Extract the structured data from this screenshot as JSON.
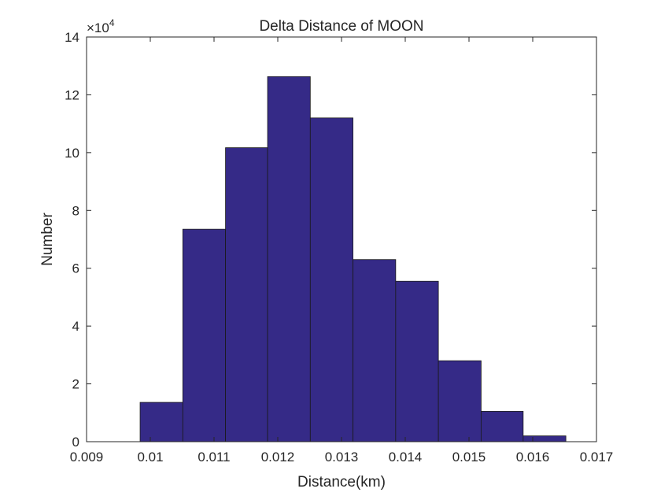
{
  "chart_data": {
    "type": "bar",
    "title": "Delta Distance of MOON",
    "xlabel": "Distance(km)",
    "ylabel": "Number",
    "y_exponent_label": "×10",
    "y_exponent_power": "4",
    "y_multiplier": 10000,
    "xlim": [
      0.009,
      0.017
    ],
    "ylim": [
      0,
      140000
    ],
    "xticks": [
      0.009,
      0.01,
      0.011,
      0.012,
      0.013,
      0.014,
      0.015,
      0.016,
      0.017
    ],
    "xtick_labels": [
      "0.009",
      "0.01",
      "0.011",
      "0.012",
      "0.013",
      "0.014",
      "0.015",
      "0.016",
      "0.017"
    ],
    "yticks": [
      0,
      20000,
      40000,
      60000,
      80000,
      100000,
      120000,
      140000
    ],
    "ytick_labels": [
      "0",
      "2",
      "4",
      "6",
      "8",
      "10",
      "12",
      "14"
    ],
    "bar_color": "#352a87",
    "bar_edge_color": "#1a1a1a",
    "bins": [
      {
        "x0": 0.00984,
        "x1": 0.01051,
        "value": 13600
      },
      {
        "x0": 0.01051,
        "x1": 0.01118,
        "value": 73500
      },
      {
        "x0": 0.01118,
        "x1": 0.01184,
        "value": 101700
      },
      {
        "x0": 0.01184,
        "x1": 0.01251,
        "value": 126300
      },
      {
        "x0": 0.01251,
        "x1": 0.01318,
        "value": 112000
      },
      {
        "x0": 0.01318,
        "x1": 0.01385,
        "value": 63000
      },
      {
        "x0": 0.01385,
        "x1": 0.01452,
        "value": 55500
      },
      {
        "x0": 0.01452,
        "x1": 0.01519,
        "value": 28000
      },
      {
        "x0": 0.01519,
        "x1": 0.01585,
        "value": 10500
      },
      {
        "x0": 0.01585,
        "x1": 0.01652,
        "value": 2000
      }
    ],
    "grid": false,
    "box": true
  }
}
